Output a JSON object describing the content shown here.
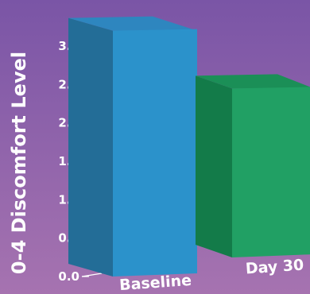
{
  "chart_data": {
    "type": "bar",
    "title": "",
    "xlabel": "",
    "ylabel": "0-4 Discomfort Level",
    "categories": [
      "Baseline",
      "Day 30"
    ],
    "values": [
      3.2,
      2.2
    ],
    "ylim": [
      0,
      3.0
    ],
    "y_ticks": [
      "0.0",
      "0.5",
      "1.0",
      "1.5",
      "2.0",
      "2.5",
      "3.0"
    ],
    "grid": false,
    "legend": "none",
    "colors": {
      "background_top": "#7a55a6",
      "background_bottom": "#a673b0",
      "bar_baseline_front": "#2b92cb",
      "bar_baseline_side": "#236d97",
      "bar_baseline_top": "#2e86bf",
      "bar_day30_front": "#21a064",
      "bar_day30_side": "#137b49",
      "bar_day30_top": "#1b8f57"
    }
  }
}
